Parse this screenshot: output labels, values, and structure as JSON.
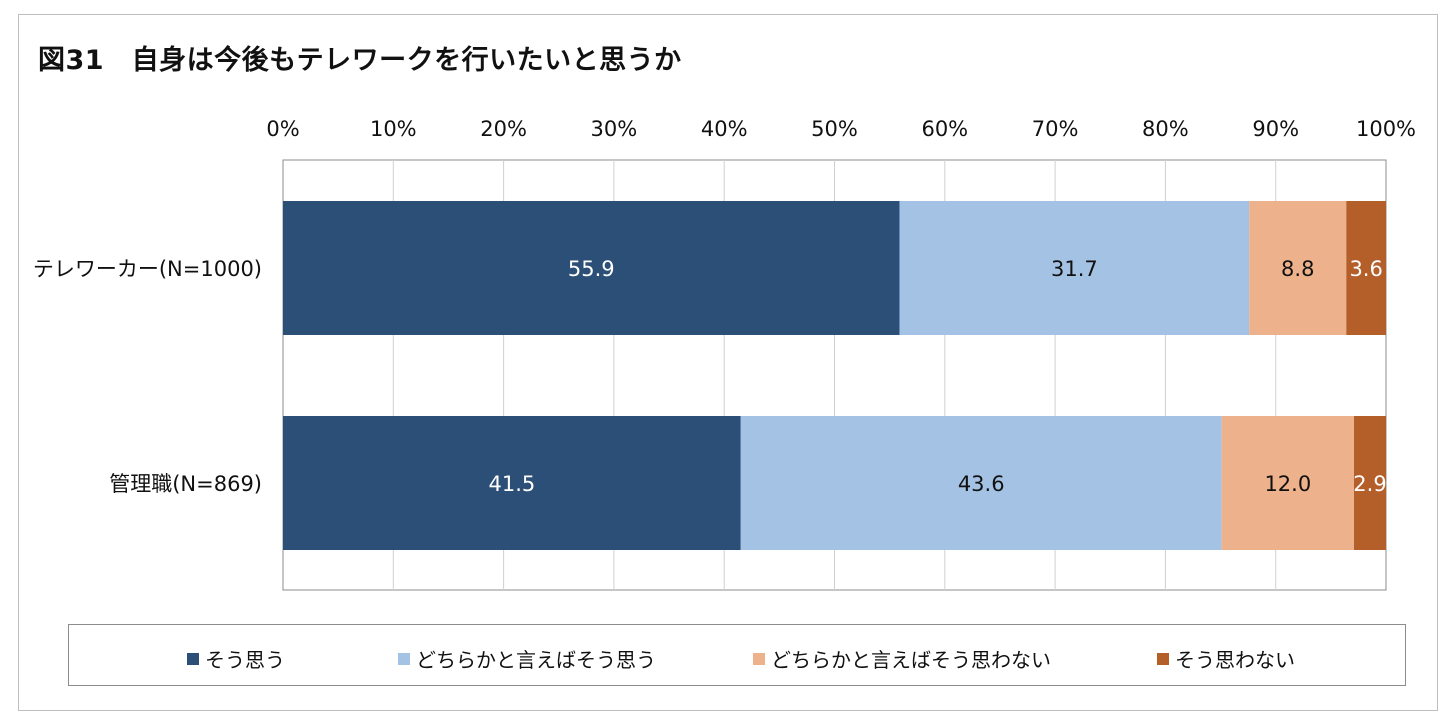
{
  "chart_data": {
    "type": "bar",
    "orientation": "horizontal",
    "stacked": true,
    "title": "図31　自身は今後もテレワークを行いたいと思うか",
    "categories": [
      "テレワーカー(N=1000)",
      "管理職(N=869)"
    ],
    "x_ticks": [
      "0%",
      "10%",
      "20%",
      "30%",
      "40%",
      "50%",
      "60%",
      "70%",
      "80%",
      "90%",
      "100%"
    ],
    "xlim": [
      0,
      100
    ],
    "grid": "vertical",
    "legend_position": "bottom",
    "series": [
      {
        "name": "そう思う",
        "color": "#2c4f77",
        "label_color": "#ffffff",
        "values": [
          55.9,
          41.5
        ],
        "labels": [
          "55.9",
          "41.5"
        ]
      },
      {
        "name": "どちらかと言えばそう思う",
        "color": "#a4c2e4",
        "label_color": "#111111",
        "values": [
          31.7,
          43.6
        ],
        "labels": [
          "31.7",
          "43.6"
        ]
      },
      {
        "name": "どちらかと言えばそう思わない",
        "color": "#edb18b",
        "label_color": "#111111",
        "values": [
          8.8,
          12.0
        ],
        "labels": [
          "8.8",
          "12.0"
        ]
      },
      {
        "name": "そう思わない",
        "color": "#b45f2a",
        "label_color": "#ffffff",
        "values": [
          3.6,
          2.9
        ],
        "labels": [
          "3.6",
          "2.9"
        ]
      }
    ]
  }
}
